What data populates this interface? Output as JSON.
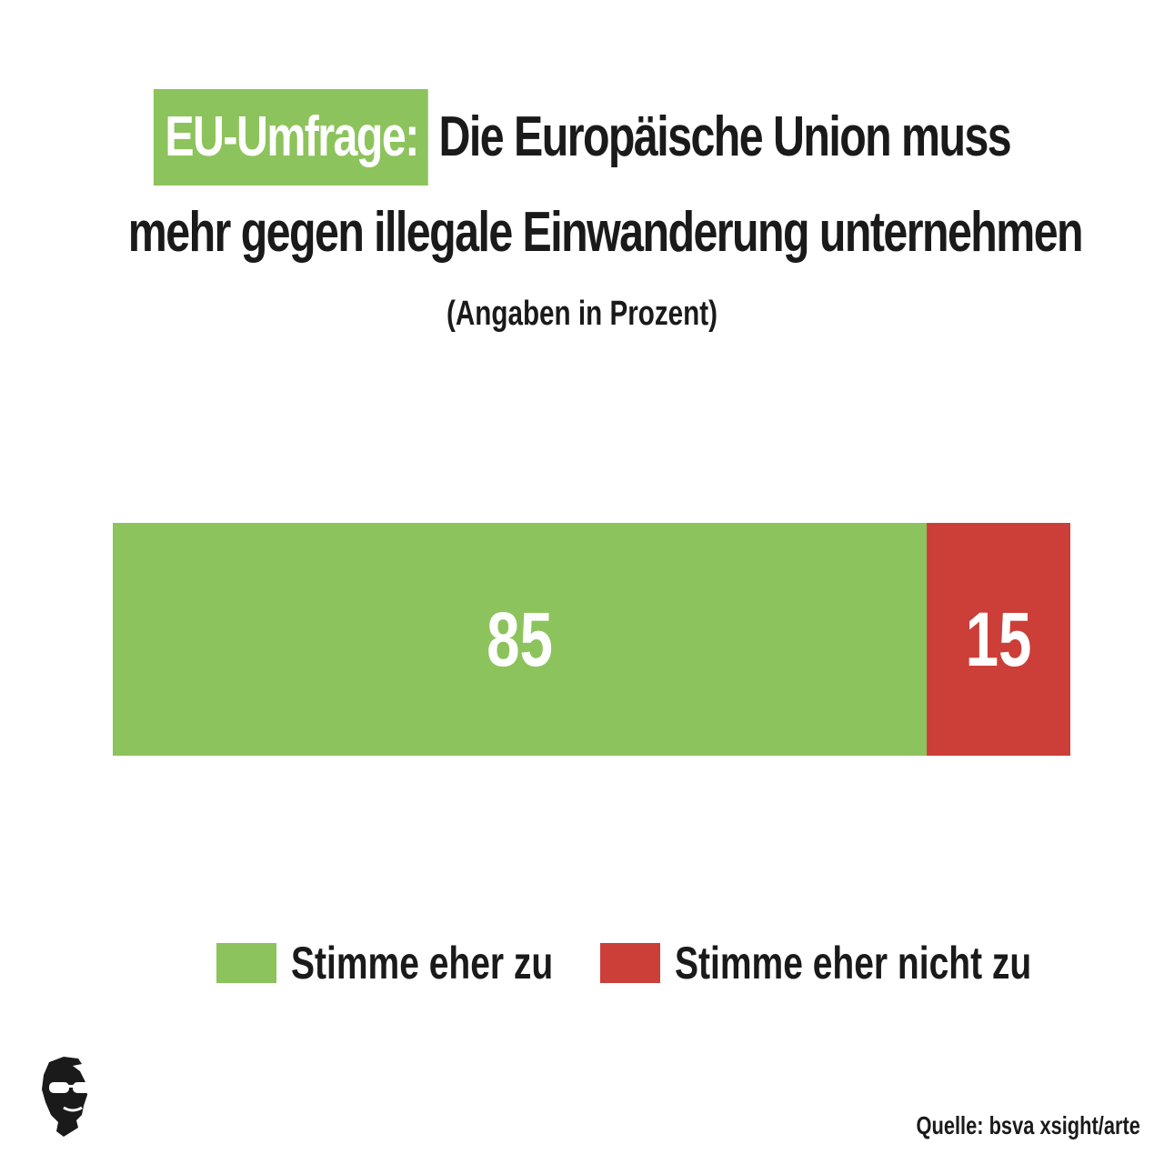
{
  "title": {
    "highlight": "EU-Umfrage:",
    "line1_rest": "Die Europäische Union muss",
    "line2": "mehr gegen illegale Einwanderung unternehmen"
  },
  "subtitle": "(Angaben in Prozent)",
  "colors": {
    "agree": "#8dc35c",
    "disagree": "#cc3e38",
    "text": "#1a1a1a"
  },
  "chart_data": {
    "type": "bar",
    "orientation": "horizontal-stacked",
    "title": "EU-Umfrage: Die Europäische Union muss mehr gegen illegale Einwanderung unternehmen",
    "subtitle": "(Angaben in Prozent)",
    "series": [
      {
        "name": "Stimme eher zu",
        "values": [
          85
        ],
        "label": "85"
      },
      {
        "name": "Stimme eher nicht zu",
        "values": [
          15
        ],
        "label": "15"
      }
    ],
    "xlim": [
      0,
      100
    ],
    "grid": false,
    "legend_position": "bottom"
  },
  "legend": [
    {
      "label": "Stimme eher zu",
      "color": "#8dc35c"
    },
    {
      "label": "Stimme eher nicht zu",
      "color": "#cc3e38"
    }
  ],
  "logo_icon": "sunglasses-face-logo-icon",
  "source": "Quelle: bsva xsight/arte"
}
